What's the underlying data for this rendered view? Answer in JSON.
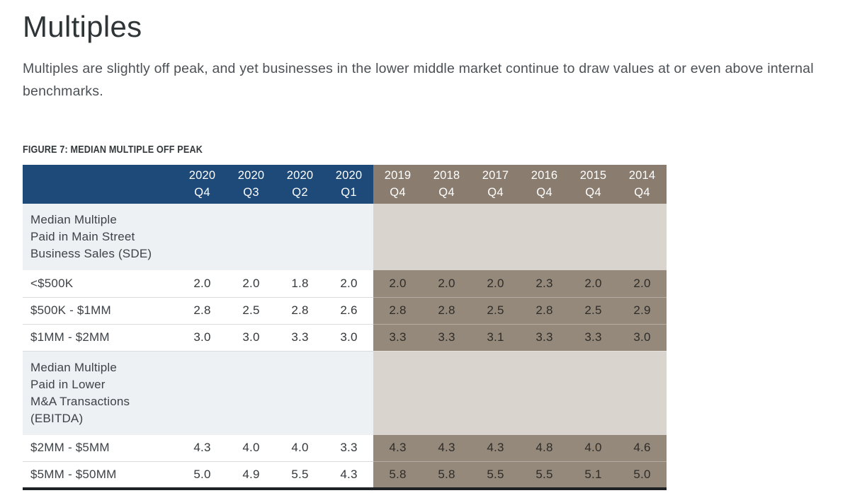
{
  "page": {
    "title": "Multiples",
    "intro": "Multiples are slightly off peak, and yet businesses in the lower middle market continue to draw values at or even above internal benchmarks.",
    "figure_label": "FIGURE 7: MEDIAN MULTIPLE OFF PEAK"
  },
  "colors": {
    "header_blue": "#1e4a7a",
    "header_taupe": "#8a7d70",
    "cell_taupe": "#95897b",
    "section_blue_tint": "#eef1f4",
    "section_taupe_tint": "#d9d5ce"
  },
  "table": {
    "columns": [
      {
        "year": "2020",
        "quarter": "Q4",
        "group": "blue"
      },
      {
        "year": "2020",
        "quarter": "Q3",
        "group": "blue"
      },
      {
        "year": "2020",
        "quarter": "Q2",
        "group": "blue"
      },
      {
        "year": "2020",
        "quarter": "Q1",
        "group": "blue"
      },
      {
        "year": "2019",
        "quarter": "Q4",
        "group": "taupe"
      },
      {
        "year": "2018",
        "quarter": "Q4",
        "group": "taupe"
      },
      {
        "year": "2017",
        "quarter": "Q4",
        "group": "taupe"
      },
      {
        "year": "2016",
        "quarter": "Q4",
        "group": "taupe"
      },
      {
        "year": "2015",
        "quarter": "Q4",
        "group": "taupe"
      },
      {
        "year": "2014",
        "quarter": "Q4",
        "group": "taupe"
      }
    ],
    "rows": [
      {
        "type": "section",
        "label": "Median Multiple\nPaid in Main Street\nBusiness Sales (SDE)"
      },
      {
        "type": "data",
        "label": "<$500K",
        "values": [
          "2.0",
          "2.0",
          "1.8",
          "2.0",
          "2.0",
          "2.0",
          "2.0",
          "2.3",
          "2.0",
          "2.0"
        ]
      },
      {
        "type": "data",
        "label": "$500K - $1MM",
        "values": [
          "2.8",
          "2.5",
          "2.8",
          "2.6",
          "2.8",
          "2.8",
          "2.5",
          "2.8",
          "2.5",
          "2.9"
        ]
      },
      {
        "type": "data",
        "label": "$1MM - $2MM",
        "values": [
          "3.0",
          "3.0",
          "3.3",
          "3.0",
          "3.3",
          "3.3",
          "3.1",
          "3.3",
          "3.3",
          "3.0"
        ]
      },
      {
        "type": "section",
        "label": "Median Multiple\nPaid in Lower\nM&A Transactions\n(EBITDA)"
      },
      {
        "type": "data",
        "label": "$2MM - $5MM",
        "values": [
          "4.3",
          "4.0",
          "4.0",
          "3.3",
          "4.3",
          "4.3",
          "4.3",
          "4.8",
          "4.0",
          "4.6"
        ]
      },
      {
        "type": "data",
        "label": "$5MM - $50MM",
        "values": [
          "5.0",
          "4.9",
          "5.5",
          "4.3",
          "5.8",
          "5.8",
          "5.5",
          "5.5",
          "5.1",
          "5.0"
        ]
      }
    ]
  }
}
